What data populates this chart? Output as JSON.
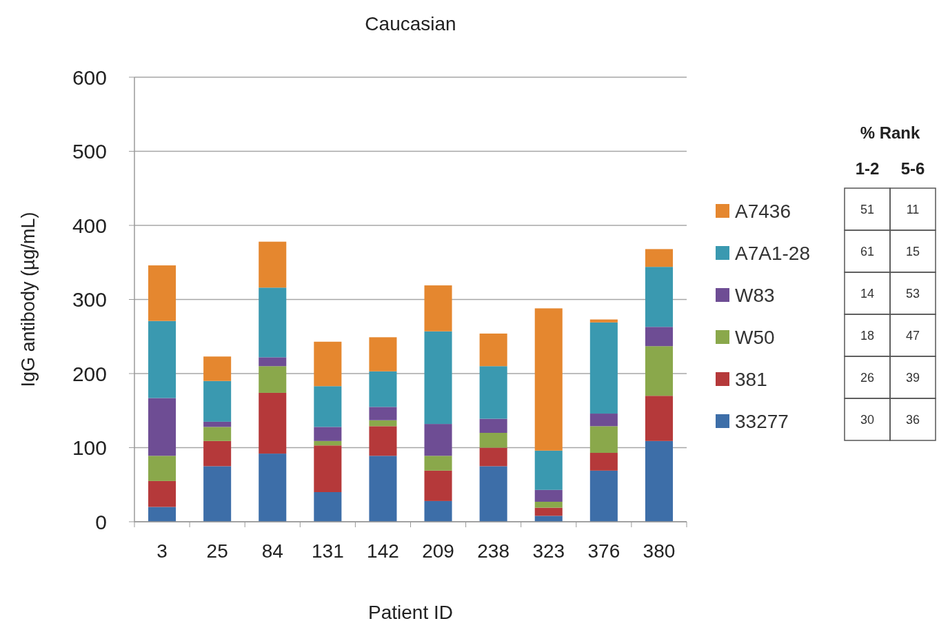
{
  "chart_data": [
    {
      "type": "bar",
      "title": "Caucasian",
      "xlabel": "Patient ID",
      "ylabel": "IgG antibody (µg/mL)",
      "categories": [
        "3",
        "25",
        "84",
        "131",
        "142",
        "209",
        "238",
        "323",
        "376",
        "380"
      ],
      "stacked": true,
      "ylim": [
        0,
        600
      ],
      "yticks": [
        0,
        100,
        200,
        300,
        400,
        500,
        600
      ],
      "grid": "y",
      "legend": "right",
      "series": [
        {
          "name": "33277",
          "color": "#3d6ea8",
          "values": [
            20,
            75,
            92,
            40,
            89,
            28,
            75,
            8,
            69,
            109
          ]
        },
        {
          "name": "381",
          "color": "#b5393a",
          "values": [
            35,
            34,
            82,
            63,
            40,
            41,
            25,
            11,
            24,
            61
          ]
        },
        {
          "name": "W50",
          "color": "#8aa84b",
          "values": [
            34,
            19,
            36,
            6,
            8,
            20,
            20,
            8,
            36,
            67
          ]
        },
        {
          "name": "W83",
          "color": "#6e4d94",
          "values": [
            78,
            7,
            12,
            19,
            18,
            43,
            19,
            16,
            17,
            26
          ]
        },
        {
          "name": "A7A1-28",
          "color": "#3a99b0",
          "values": [
            104,
            55,
            94,
            55,
            48,
            125,
            71,
            53,
            123,
            81
          ]
        },
        {
          "name": "A7436",
          "color": "#e5872f",
          "values": [
            75,
            33,
            62,
            60,
            46,
            62,
            44,
            192,
            4,
            24
          ]
        }
      ]
    },
    {
      "type": "other",
      "title": "% Rank",
      "annotations": [
        "1-2",
        "5-6",
        "51",
        "11",
        "61",
        "15",
        "14",
        "53",
        "18",
        "47",
        "26",
        "39",
        "30",
        "36"
      ]
    }
  ]
}
